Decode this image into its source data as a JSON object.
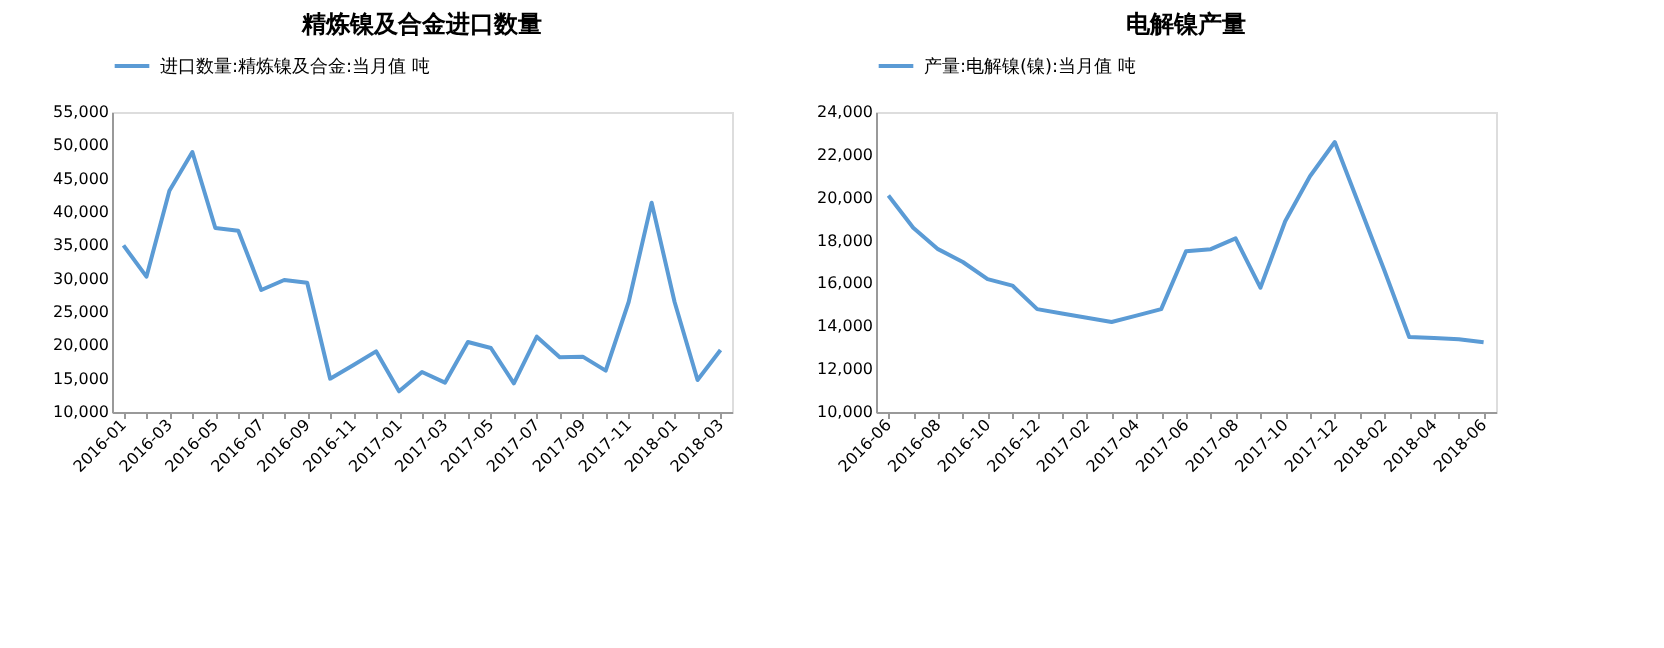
{
  "chart_data": [
    {
      "type": "line",
      "title": "精炼镍及合金进口数量",
      "categories": [
        "2016-01",
        null,
        "2016-03",
        null,
        "2016-05",
        null,
        "2016-07",
        null,
        "2016-09",
        null,
        "2016-11",
        null,
        "2017-01",
        null,
        "2017-03",
        null,
        "2017-05",
        null,
        "2017-07",
        null,
        "2017-09",
        null,
        "2017-11",
        null,
        "2018-01",
        null,
        "2018-03"
      ],
      "series": [
        {
          "name": "进口数量:精炼镍及合金:当月值 吨",
          "color": "#5b9bd5",
          "values": [
            35000,
            30300,
            43200,
            49000,
            37600,
            37200,
            28300,
            29800,
            29400,
            15000,
            17000,
            19100,
            13100,
            16000,
            14400,
            20500,
            19600,
            14300,
            21300,
            18200,
            18300,
            16200,
            26500,
            41400,
            26500,
            14800,
            19300
          ]
        }
      ],
      "ylim": [
        10000,
        55000
      ],
      "yticks": [
        {
          "value": 10000,
          "label": "10,000"
        },
        {
          "value": 15000,
          "label": "15,000"
        },
        {
          "value": 20000,
          "label": "20,000"
        },
        {
          "value": 25000,
          "label": "25,000"
        },
        {
          "value": 30000,
          "label": "30,000"
        },
        {
          "value": 35000,
          "label": "35,000"
        },
        {
          "value": 40000,
          "label": "40,000"
        },
        {
          "value": 45000,
          "label": "45,000"
        },
        {
          "value": 50000,
          "label": "50,000"
        },
        {
          "value": 55000,
          "label": "55,000"
        }
      ],
      "legend": "top",
      "grid": false
    },
    {
      "type": "line",
      "title": "电解镍产量",
      "categories": [
        "2016-06",
        null,
        "2016-08",
        null,
        "2016-10",
        null,
        "2016-12",
        null,
        "2017-02",
        null,
        "2017-04",
        null,
        "2017-06",
        null,
        "2017-08",
        null,
        "2017-10",
        null,
        "2017-12",
        null,
        "2018-02",
        null,
        "2018-04",
        null,
        "2018-06"
      ],
      "series": [
        {
          "name": "产量:电解镍(镍):当月值 吨",
          "color": "#5b9bd5",
          "values": [
            20100,
            18600,
            17600,
            17000,
            16200,
            15900,
            14800,
            14600,
            14400,
            14200,
            14500,
            14800,
            17500,
            17600,
            18100,
            15800,
            18900,
            21000,
            22600,
            19600,
            16600,
            13500,
            13450,
            13400,
            13250
          ]
        }
      ],
      "ylim": [
        10000,
        24000
      ],
      "yticks": [
        {
          "value": 10000,
          "label": "10,000"
        },
        {
          "value": 12000,
          "label": "12,000"
        },
        {
          "value": 14000,
          "label": "14,000"
        },
        {
          "value": 16000,
          "label": "16,000"
        },
        {
          "value": 18000,
          "label": "18,000"
        },
        {
          "value": 20000,
          "label": "20,000"
        },
        {
          "value": 22000,
          "label": "22,000"
        },
        {
          "value": 24000,
          "label": "24,000"
        }
      ],
      "legend": "top",
      "grid": false
    }
  ]
}
